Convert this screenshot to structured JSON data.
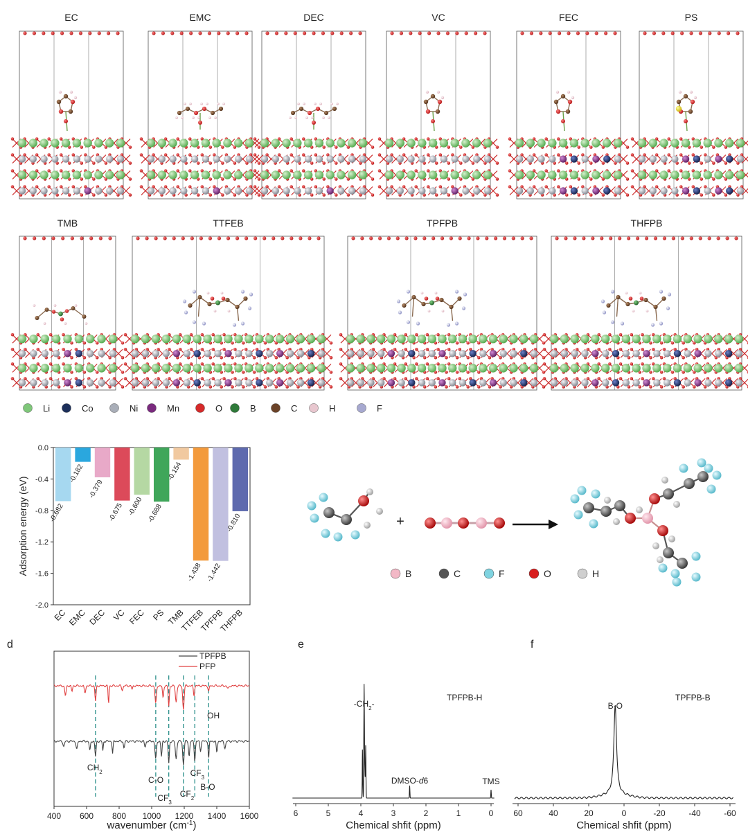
{
  "structures_row1": [
    {
      "name": "EC",
      "mn_layers": 1,
      "co": false,
      "s": false
    },
    {
      "name": "EMC",
      "mn_layers": 1,
      "co": false,
      "s": false
    },
    {
      "name": "DEC",
      "mn_layers": 1,
      "co": false,
      "s": false
    },
    {
      "name": "VC",
      "mn_layers": 1,
      "co": false,
      "s": false
    },
    {
      "name": "FEC",
      "mn_layers": 2,
      "co": true,
      "s": false
    },
    {
      "name": "PS",
      "mn_layers": 2,
      "co": true,
      "s": true
    }
  ],
  "structures_row2": [
    {
      "name": "TMB"
    },
    {
      "name": "TTFEB"
    },
    {
      "name": "TPFPB"
    },
    {
      "name": "THFPB"
    }
  ],
  "legend_atoms": [
    {
      "label": "Li",
      "color": "#7fc77a"
    },
    {
      "label": "Co",
      "color": "#1c2f5a"
    },
    {
      "label": "Ni",
      "color": "#a9aeb8"
    },
    {
      "label": "Mn",
      "color": "#7a2a7e"
    },
    {
      "label": "O",
      "color": "#d62a2a"
    },
    {
      "label": "B",
      "color": "#2f7a3a"
    },
    {
      "label": "C",
      "color": "#6b4328"
    },
    {
      "label": "H",
      "color": "#e8c7cf"
    },
    {
      "label": "F",
      "color": "#a7a9d0"
    }
  ],
  "chart_data": [
    {
      "type": "bar",
      "categories": [
        "EC",
        "EMC",
        "DEC",
        "VC",
        "FEC",
        "PS",
        "TMB",
        "TTFEB",
        "TPFPB",
        "THFPB"
      ],
      "values": [
        -0.682,
        -0.182,
        -0.379,
        -0.675,
        -0.6,
        -0.688,
        -0.154,
        -1.438,
        -1.442,
        -0.81
      ],
      "value_labels": [
        "-0.682",
        "-0.182",
        "-0.379",
        "-0.675",
        "-0.600",
        "-0.688",
        "-0.154",
        "-1.438",
        "-1.442",
        "-0.810"
      ],
      "colors": [
        "#a6d8f0",
        "#2aa7de",
        "#e8a9c8",
        "#dc4a5a",
        "#b5d8a3",
        "#3fa65a",
        "#f1c9a0",
        "#f39a3c",
        "#c1c0e0",
        "#5e6aae"
      ],
      "ylabel": "Adsorption energy (eV)",
      "ylim": [
        -2.0,
        0.0
      ],
      "yticks": [
        "0.0",
        "-0.4",
        "-0.8",
        "-1.2",
        "-1.6",
        "-2.0"
      ],
      "ytick_values": [
        0,
        -0.4,
        -0.8,
        -1.2,
        -1.6,
        -2.0
      ]
    },
    {
      "type": "line",
      "panel": "d",
      "series": [
        {
          "name": "TPFPB",
          "color": "#444444"
        },
        {
          "name": "PFP",
          "color": "#e04040"
        }
      ],
      "xlabel": "wavenumber (cm",
      "xlabel_sup": "-1",
      "xlabel_end": ")",
      "xlim": [
        400,
        1600
      ],
      "xticks": [
        "400",
        "600",
        "800",
        "1000",
        "1200",
        "1400",
        "1600"
      ],
      "xtick_values": [
        400,
        600,
        800,
        1000,
        1200,
        1400,
        1600
      ],
      "dashed_lines": [
        655,
        1025,
        1105,
        1195,
        1265,
        1350
      ],
      "annotations": [
        {
          "text": "CH",
          "sub": "2",
          "x": 655
        },
        {
          "text": "C-O",
          "sub": "",
          "x": 1030
        },
        {
          "text": "CF",
          "sub": "3",
          "x": 1095
        },
        {
          "text": "CF",
          "sub": "2",
          "x": 1165
        },
        {
          "text": "CF",
          "sub": "3",
          "x": 1245
        },
        {
          "text": "B-O",
          "sub": "",
          "x": 1350
        },
        {
          "text": "OH",
          "sub": "",
          "x": 1375
        }
      ]
    },
    {
      "type": "line",
      "panel": "e",
      "series_label": "TPFPB-H",
      "xlabel": "Chemical shfit (ppm)",
      "xlim": [
        6,
        0
      ],
      "xticks": [
        "6",
        "5",
        "4",
        "3",
        "2",
        "1",
        "0"
      ],
      "xtick_values": [
        6,
        5,
        4,
        3,
        2,
        1,
        0
      ],
      "peaks": [
        {
          "x": 3.9,
          "label": "-CH",
          "label_sub": "2",
          "label_end": "-"
        },
        {
          "x": 2.5,
          "label": "DMSO-",
          "label_italic": "d",
          "label_end": "6"
        },
        {
          "x": 0.0,
          "label": "TMS"
        }
      ]
    },
    {
      "type": "line",
      "panel": "f",
      "series_label": "TPFPB-B",
      "xlabel": "Chemical shfit (ppm)",
      "xlim": [
        60,
        -60
      ],
      "xticks": [
        "60",
        "40",
        "20",
        "0",
        "-20",
        "-40",
        "-60"
      ],
      "xtick_values": [
        60,
        40,
        20,
        0,
        -20,
        -40,
        -60
      ],
      "peaks": [
        {
          "x": 5,
          "label": "B-O"
        }
      ]
    }
  ],
  "reaction": {
    "plus": "+",
    "legend": [
      {
        "label": "B",
        "color": "#f2b8c6"
      },
      {
        "label": "C",
        "color": "#555555"
      },
      {
        "label": "F",
        "color": "#7fd3e0"
      },
      {
        "label": "O",
        "color": "#d81e1e"
      },
      {
        "label": "H",
        "color": "#cfcfcf"
      }
    ]
  },
  "panel_letters": {
    "d": "d",
    "e": "e",
    "f": "f"
  }
}
